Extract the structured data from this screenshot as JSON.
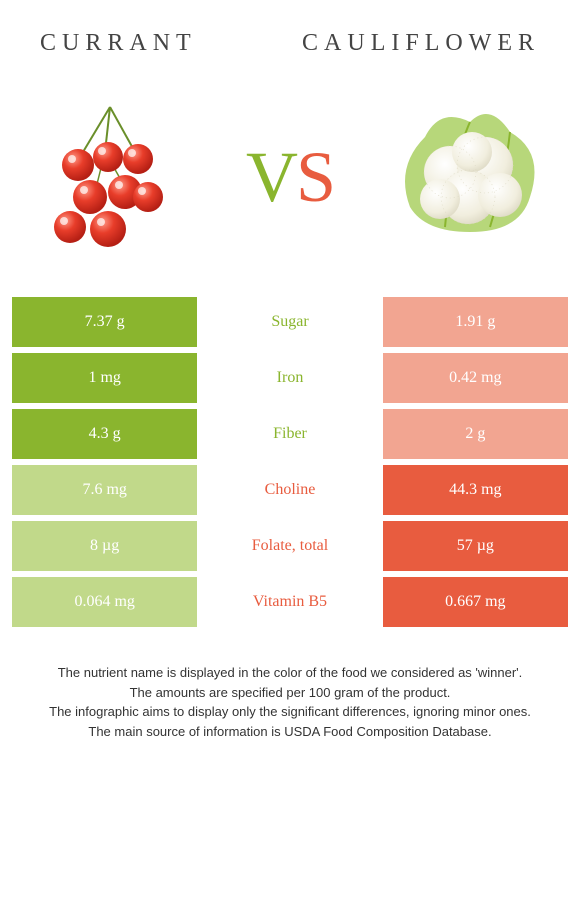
{
  "header": {
    "left": "Currant",
    "right": "Cauliflower"
  },
  "vs": {
    "v": "V",
    "s": "S"
  },
  "colors": {
    "left_win": "#8ab52e",
    "left_lose": "#c1d98a",
    "right_win": "#e85c3f",
    "right_lose": "#f2a591",
    "background": "#ffffff"
  },
  "rows": [
    {
      "nutrient": "Sugar",
      "left": "7.37 g",
      "right": "1.91 g",
      "winner": "left"
    },
    {
      "nutrient": "Iron",
      "left": "1 mg",
      "right": "0.42 mg",
      "winner": "left"
    },
    {
      "nutrient": "Fiber",
      "left": "4.3 g",
      "right": "2 g",
      "winner": "left"
    },
    {
      "nutrient": "Choline",
      "left": "7.6 mg",
      "right": "44.3 mg",
      "winner": "right"
    },
    {
      "nutrient": "Folate, total",
      "left": "8 µg",
      "right": "57 µg",
      "winner": "right"
    },
    {
      "nutrient": "Vitamin B5",
      "left": "0.064 mg",
      "right": "0.667 mg",
      "winner": "right"
    }
  ],
  "footnotes": [
    "The nutrient name is displayed in the color of the food we considered as 'winner'.",
    "The amounts are specified per 100 gram of the product.",
    "The infographic aims to display only the significant differences, ignoring minor ones.",
    "The main source of information is USDA Food Composition Database."
  ]
}
